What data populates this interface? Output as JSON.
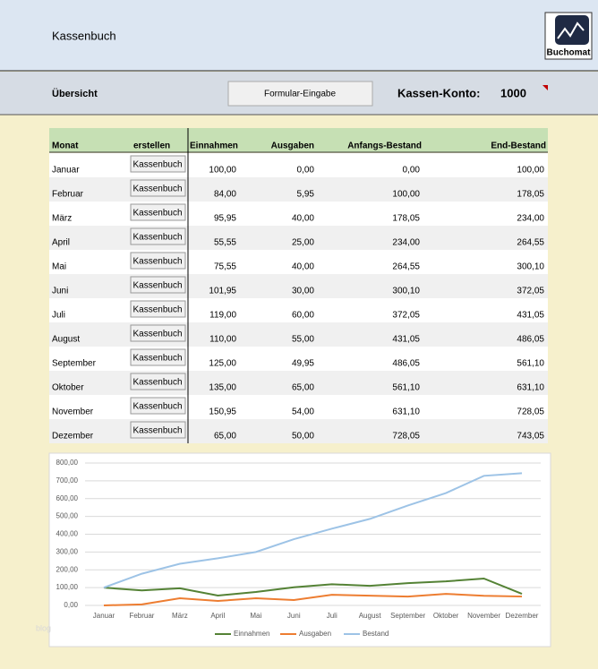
{
  "header": {
    "title": "Kassenbuch",
    "logo": "Buchomat"
  },
  "toolbar": {
    "section": "Übersicht",
    "button": "Formular-Eingabe",
    "account_label": "Kassen-Konto:",
    "account": "1000"
  },
  "table": {
    "columns": [
      "Monat",
      "erstellen",
      "Einnahmen",
      "Ausgaben",
      "Anfangs-Bestand",
      "End-Bestand"
    ],
    "rows": [
      [
        "Januar",
        "Kassenbuch",
        "100,00",
        "0,00",
        "0,00",
        "100,00"
      ],
      [
        "Februar",
        "Kassenbuch",
        "84,00",
        "5,95",
        "100,00",
        "178,05"
      ],
      [
        "März",
        "Kassenbuch",
        "95,95",
        "40,00",
        "178,05",
        "234,00"
      ],
      [
        "April",
        "Kassenbuch",
        "55,55",
        "25,00",
        "234,00",
        "264,55"
      ],
      [
        "Mai",
        "Kassenbuch",
        "75,55",
        "40,00",
        "264,55",
        "300,10"
      ],
      [
        "Juni",
        "Kassenbuch",
        "101,95",
        "30,00",
        "300,10",
        "372,05"
      ],
      [
        "Juli",
        "Kassenbuch",
        "119,00",
        "60,00",
        "372,05",
        "431,05"
      ],
      [
        "August",
        "Kassenbuch",
        "110,00",
        "55,00",
        "431,05",
        "486,05"
      ],
      [
        "September",
        "Kassenbuch",
        "125,00",
        "49,95",
        "486,05",
        "561,10"
      ],
      [
        "Oktober",
        "Kassenbuch",
        "135,00",
        "65,00",
        "561,10",
        "631,10"
      ],
      [
        "November",
        "Kassenbuch",
        "150,95",
        "54,00",
        "631,10",
        "728,05"
      ],
      [
        "Dezember",
        "Kassenbuch",
        "65,00",
        "50,00",
        "728,05",
        "743,05"
      ]
    ]
  },
  "chart_data": {
    "type": "line",
    "categories": [
      "Januar",
      "Februar",
      "März",
      "April",
      "Mai",
      "Juni",
      "Juli",
      "August",
      "September",
      "Oktober",
      "November",
      "Dezember"
    ],
    "series": [
      {
        "name": "Einnahmen",
        "color": "#548235",
        "values": [
          100,
          84,
          95.95,
          55.55,
          75.55,
          101.95,
          119,
          110,
          125,
          135,
          150.95,
          65
        ]
      },
      {
        "name": "Ausgaben",
        "color": "#ed7d31",
        "values": [
          0,
          5.95,
          40,
          25,
          40,
          30,
          60,
          55,
          49.95,
          65,
          54,
          50
        ]
      },
      {
        "name": "Bestand",
        "color": "#9dc3e6",
        "values": [
          100,
          178.05,
          234,
          264.55,
          300.1,
          372.05,
          431.05,
          486.05,
          561.1,
          631.1,
          728.05,
          743.05
        ]
      }
    ],
    "ylim": [
      0,
      800
    ],
    "yticks": [
      {
        "value": 0,
        "label": "0,00"
      },
      {
        "value": 100,
        "label": "100,00"
      },
      {
        "value": 200,
        "label": "200,00"
      },
      {
        "value": 300,
        "label": "300,00"
      },
      {
        "value": 400,
        "label": "400,00"
      },
      {
        "value": 500,
        "label": "500,00"
      },
      {
        "value": 600,
        "label": "600,00"
      },
      {
        "value": 700,
        "label": "700,00"
      },
      {
        "value": 800,
        "label": "800,00"
      }
    ],
    "grid": true,
    "legend": "bottom"
  },
  "watermark": "blog"
}
